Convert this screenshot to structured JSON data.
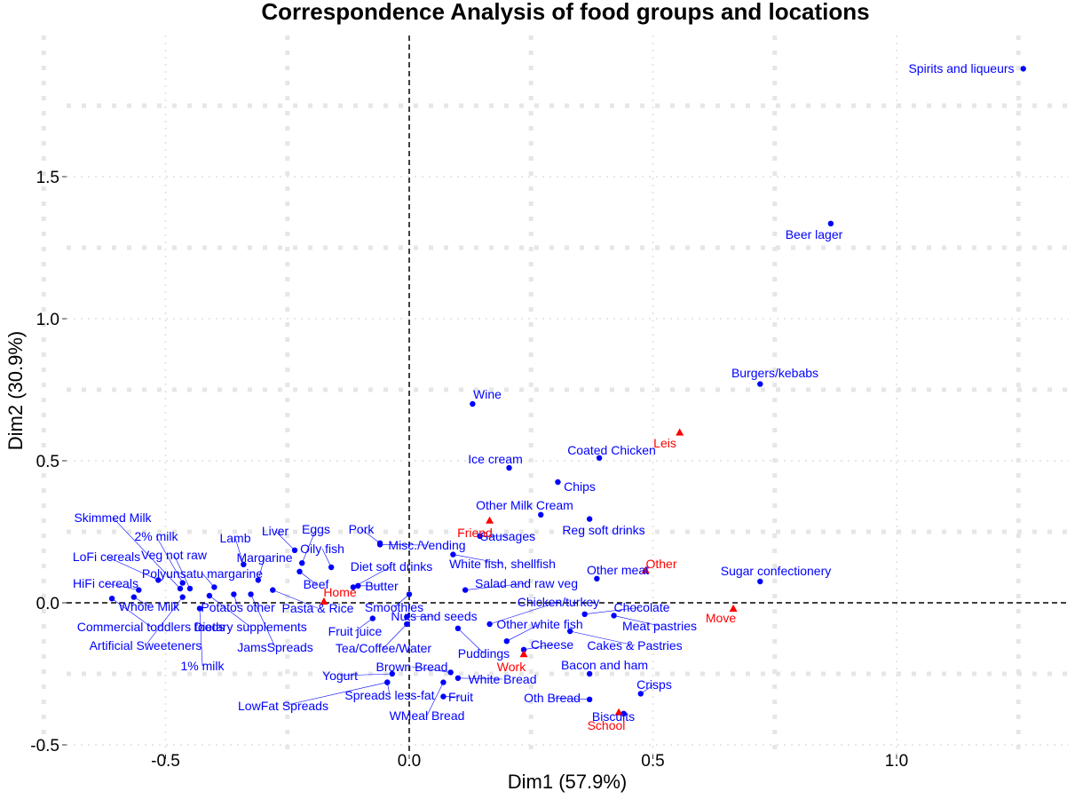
{
  "chart_data": {
    "type": "scatter",
    "title": "Correspondence Analysis of food groups and locations",
    "xlabel": "Dim1 (57.9%)",
    "ylabel": "Dim2 (30.9%)",
    "xlim": [
      -0.7,
      1.35
    ],
    "ylim": [
      -0.52,
      1.88
    ],
    "x_ticks": [
      -0.5,
      0.0,
      0.5,
      1.0
    ],
    "x_tick_labels": [
      "-0.5",
      "0.0",
      "0.5",
      "1.0"
    ],
    "y_ticks": [
      -0.5,
      0.0,
      0.5,
      1.0,
      1.5
    ],
    "y_tick_labels": [
      "-0.5",
      "0.0",
      "0.5",
      "1.0",
      "1.5"
    ],
    "grid": true,
    "reference_lines": {
      "x": 0,
      "y": 0
    },
    "colors": {
      "rows": "#0000ff",
      "columns": "#ff0000",
      "grid": "#e6e6e6",
      "leader": "#0000ff"
    },
    "series": [
      {
        "marker": "circle",
        "color": "#0000ff",
        "points": [
          {
            "label": "Spirits and liqueurs",
            "x": 1.26,
            "y": 1.88
          },
          {
            "label": "Beer lager",
            "x": 0.865,
            "y": 1.335
          },
          {
            "label": "Burgers/kebabs",
            "x": 0.72,
            "y": 0.77
          },
          {
            "label": "Wine",
            "x": 0.13,
            "y": 0.7
          },
          {
            "label": "Coated Chicken",
            "x": 0.39,
            "y": 0.51
          },
          {
            "label": "Ice cream",
            "x": 0.205,
            "y": 0.475
          },
          {
            "label": "Chips",
            "x": 0.305,
            "y": 0.425
          },
          {
            "label": "Other Milk Cream",
            "x": 0.27,
            "y": 0.31
          },
          {
            "label": "Reg soft drinks",
            "x": 0.37,
            "y": 0.295
          },
          {
            "label": "Sausages",
            "x": 0.145,
            "y": 0.235
          },
          {
            "label": "Sugar confectionery",
            "x": 0.72,
            "y": 0.075
          },
          {
            "label": "Other meat",
            "x": 0.385,
            "y": 0.085
          },
          {
            "label": "White fish, shellfish",
            "x": 0.09,
            "y": 0.17
          },
          {
            "label": "Misc./Vending",
            "x": -0.06,
            "y": 0.205
          },
          {
            "label": "Salad and raw veg",
            "x": 0.115,
            "y": 0.045
          },
          {
            "label": "Chicken/turkey",
            "x": 0.165,
            "y": -0.075
          },
          {
            "label": "Chocolate",
            "x": 0.36,
            "y": -0.04
          },
          {
            "label": "Meat pastries",
            "x": 0.42,
            "y": -0.045
          },
          {
            "label": "Cakes & Pastries",
            "x": 0.33,
            "y": -0.1
          },
          {
            "label": "Other white fish",
            "x": 0.2,
            "y": -0.135
          },
          {
            "label": "Puddings",
            "x": 0.1,
            "y": -0.09
          },
          {
            "label": "Cheese",
            "x": 0.235,
            "y": -0.165
          },
          {
            "label": "Bacon and ham",
            "x": 0.37,
            "y": -0.25
          },
          {
            "label": "Crisps",
            "x": 0.475,
            "y": -0.32
          },
          {
            "label": "Oth Bread",
            "x": 0.37,
            "y": -0.34
          },
          {
            "label": "Biscuits",
            "x": 0.44,
            "y": -0.39
          },
          {
            "label": "Brown Bread",
            "x": 0.085,
            "y": -0.245
          },
          {
            "label": "White Bread",
            "x": 0.1,
            "y": -0.265
          },
          {
            "label": "Fruit",
            "x": 0.07,
            "y": -0.33
          },
          {
            "label": "WMeal Bread",
            "x": 0.07,
            "y": -0.28
          },
          {
            "label": "Spreads less-fat",
            "x": -0.045,
            "y": -0.28
          },
          {
            "label": "Yogurt",
            "x": -0.035,
            "y": -0.25
          },
          {
            "label": "LowFat Spreads",
            "x": -0.045,
            "y": -0.28
          },
          {
            "label": "Nuts and seeds",
            "x": -0.005,
            "y": -0.05
          },
          {
            "label": "Tea/Coffee/Water",
            "x": -0.005,
            "y": -0.075
          },
          {
            "label": "Smoothies",
            "x": 0.0,
            "y": 0.03
          },
          {
            "label": "Fruit juice",
            "x": -0.075,
            "y": -0.055
          },
          {
            "label": "Butter",
            "x": -0.105,
            "y": 0.06
          },
          {
            "label": "Diet soft drinks",
            "x": -0.115,
            "y": 0.055
          },
          {
            "label": "Beef",
            "x": -0.225,
            "y": 0.11
          },
          {
            "label": "Oily fish",
            "x": -0.16,
            "y": 0.125
          },
          {
            "label": "Eggs",
            "x": -0.22,
            "y": 0.14
          },
          {
            "label": "Liver",
            "x": -0.235,
            "y": 0.185
          },
          {
            "label": "Pork",
            "x": -0.06,
            "y": 0.21
          },
          {
            "label": "Pasta & Rice",
            "x": -0.28,
            "y": 0.045
          },
          {
            "label": "Margarine",
            "x": -0.31,
            "y": 0.08
          },
          {
            "label": "Lamb",
            "x": -0.34,
            "y": 0.135
          },
          {
            "label": "Potatos other",
            "x": -0.36,
            "y": 0.03
          },
          {
            "label": "Dietary supplements",
            "x": -0.41,
            "y": 0.025
          },
          {
            "label": "JamsSpreads",
            "x": -0.325,
            "y": 0.03
          },
          {
            "label": "Polyunsatu margarine",
            "x": -0.4,
            "y": 0.055
          },
          {
            "label": "Veg not raw",
            "x": -0.45,
            "y": 0.05
          },
          {
            "label": "2% milk",
            "x": -0.465,
            "y": 0.07
          },
          {
            "label": "Skimmed Milk",
            "x": -0.47,
            "y": 0.05
          },
          {
            "label": "LoFi cereals",
            "x": -0.515,
            "y": 0.08
          },
          {
            "label": "HiFi cereals",
            "x": -0.555,
            "y": 0.045
          },
          {
            "label": "Whole Milk",
            "x": -0.565,
            "y": 0.02
          },
          {
            "label": "Commercial toddlers foods",
            "x": -0.61,
            "y": 0.015
          },
          {
            "label": "Artificial Sweeteners",
            "x": -0.465,
            "y": 0.02
          },
          {
            "label": "1% milk",
            "x": -0.43,
            "y": -0.02
          }
        ]
      },
      {
        "marker": "triangle",
        "color": "#ff0000",
        "points": [
          {
            "label": "Leis",
            "x": 0.555,
            "y": 0.6
          },
          {
            "label": "Friend",
            "x": 0.165,
            "y": 0.29
          },
          {
            "label": "Other",
            "x": 0.485,
            "y": 0.115
          },
          {
            "label": "Home",
            "x": -0.175,
            "y": 0.005
          },
          {
            "label": "Move",
            "x": 0.665,
            "y": -0.02
          },
          {
            "label": "Work",
            "x": 0.235,
            "y": -0.18
          },
          {
            "label": "School",
            "x": 0.43,
            "y": -0.385
          }
        ]
      }
    ]
  }
}
